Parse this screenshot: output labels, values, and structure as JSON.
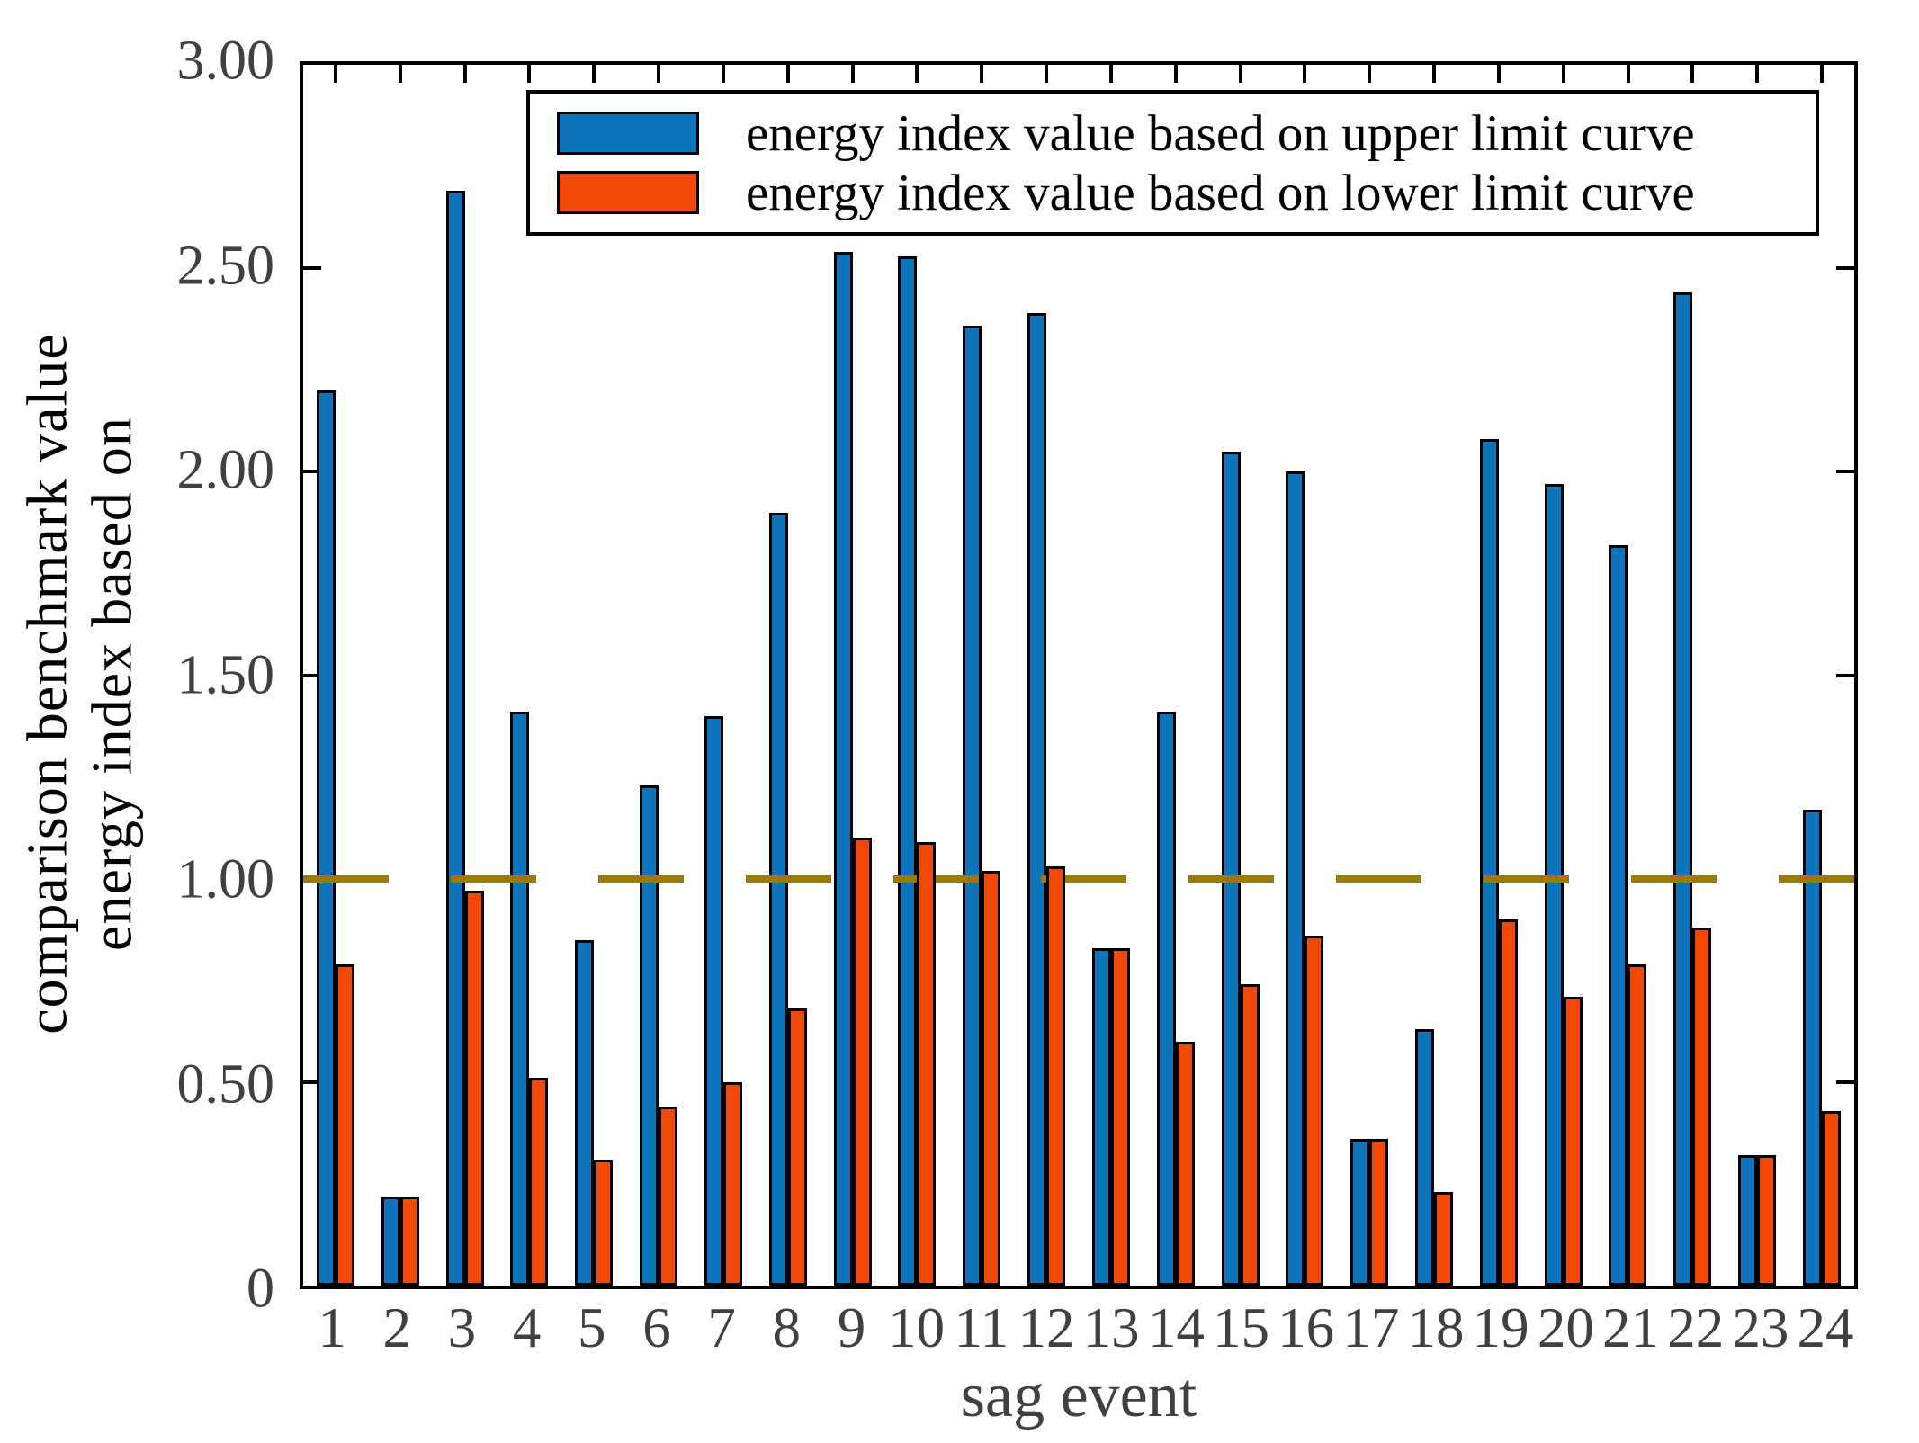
{
  "chart_data": {
    "type": "bar",
    "title": "",
    "xlabel": "sag event",
    "ylabel_lines": [
      "comparison benchmark value",
      "energy index based on"
    ],
    "categories": [
      "1",
      "2",
      "3",
      "4",
      "5",
      "6",
      "7",
      "8",
      "9",
      "10",
      "11",
      "12",
      "13",
      "14",
      "15",
      "16",
      "17",
      "18",
      "19",
      "20",
      "21",
      "22",
      "23",
      "24"
    ],
    "series": [
      {
        "name": "energy index value based on upper limit curve",
        "color": "#0D73BA",
        "values": [
          2.2,
          0.22,
          2.69,
          1.41,
          0.85,
          1.23,
          1.4,
          1.9,
          2.54,
          2.53,
          2.36,
          2.39,
          0.83,
          1.41,
          2.05,
          2.0,
          0.36,
          0.63,
          2.08,
          1.97,
          1.82,
          2.44,
          0.32,
          1.17
        ]
      },
      {
        "name": "energy index value based on lower limit curve",
        "color": "#F24808",
        "values": [
          0.79,
          0.22,
          0.97,
          0.51,
          0.31,
          0.44,
          0.5,
          0.68,
          1.1,
          1.09,
          1.02,
          1.03,
          0.83,
          0.6,
          0.74,
          0.86,
          0.36,
          0.23,
          0.9,
          0.71,
          0.79,
          0.88,
          0.32,
          0.43
        ]
      }
    ],
    "reference_line": {
      "value": 1.0,
      "style": "dashed",
      "color": "#9B7B08"
    },
    "ylim": [
      0,
      3
    ],
    "yticks": [
      {
        "value": 3.0,
        "label": "3.00"
      },
      {
        "value": 2.5,
        "label": "2.50"
      },
      {
        "value": 2.0,
        "label": "2.00"
      },
      {
        "value": 1.5,
        "label": "1.50"
      },
      {
        "value": 1.0,
        "label": "1.00"
      },
      {
        "value": 0.5,
        "label": "0.50"
      },
      {
        "value": 0.0,
        "label": "0"
      }
    ],
    "grid": false,
    "legend_position": "top-center",
    "tick_label_color": "#404040",
    "axis_color": "#000000"
  }
}
